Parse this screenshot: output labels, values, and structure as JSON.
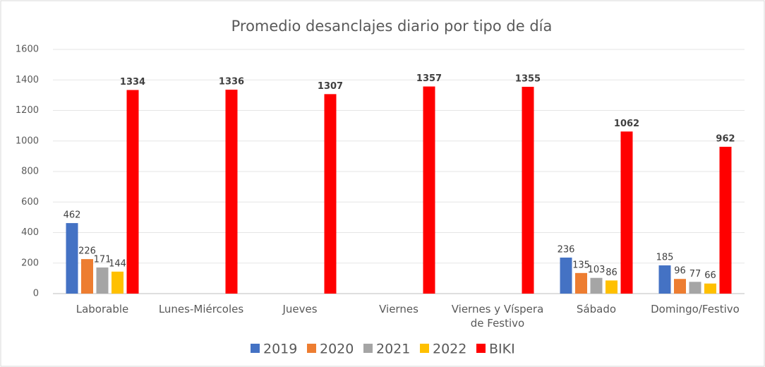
{
  "chart_data": {
    "type": "bar",
    "title": "Promedio desanclajes diario por tipo de día",
    "categories": [
      "Laborable",
      "Lunes-Miércoles",
      "Jueves",
      "Viernes",
      "Viernes y Víspera de Festivo",
      "Sábado",
      "Domingo/Festivo"
    ],
    "series": [
      {
        "name": "2019",
        "color": "#4472c4",
        "values": [
          462,
          null,
          null,
          null,
          null,
          236,
          185
        ]
      },
      {
        "name": "2020",
        "color": "#ed7d31",
        "values": [
          226,
          null,
          null,
          null,
          null,
          135,
          96
        ]
      },
      {
        "name": "2021",
        "color": "#a5a5a5",
        "values": [
          171,
          null,
          null,
          null,
          null,
          103,
          77
        ]
      },
      {
        "name": "2022",
        "color": "#ffc000",
        "values": [
          144,
          null,
          null,
          null,
          null,
          86,
          66
        ]
      },
      {
        "name": "BIKI",
        "color": "#ff0000",
        "values": [
          1334,
          1336,
          1307,
          1357,
          1355,
          1062,
          962
        ]
      }
    ],
    "ylim": [
      0,
      1600
    ],
    "yticks": [
      0,
      200,
      400,
      600,
      800,
      1000,
      1200,
      1400,
      1600
    ],
    "grid": true,
    "legend": "bottom"
  }
}
